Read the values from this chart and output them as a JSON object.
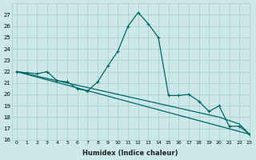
{
  "background_color": "#cce8e8",
  "grid_color": "#aacccc",
  "line_color": "#006666",
  "xlabel": "Humidex (Indice chaleur)",
  "ylim": [
    16,
    28
  ],
  "xlim": [
    -0.5,
    23
  ],
  "yticks": [
    16,
    17,
    18,
    19,
    20,
    21,
    22,
    23,
    24,
    25,
    26,
    27
  ],
  "xticks": [
    0,
    1,
    2,
    3,
    4,
    5,
    6,
    7,
    8,
    9,
    10,
    11,
    12,
    13,
    14,
    15,
    16,
    17,
    18,
    19,
    20,
    21,
    22,
    23
  ],
  "curve1_x": [
    0,
    1,
    2,
    3,
    4,
    5,
    6,
    7,
    8,
    9,
    10,
    11,
    12,
    13,
    14,
    15,
    16,
    17,
    18,
    19,
    20,
    21,
    22,
    23
  ],
  "curve1_y": [
    22.0,
    21.9,
    21.8,
    22.0,
    21.2,
    21.1,
    20.5,
    20.3,
    21.1,
    22.5,
    23.8,
    26.0,
    27.2,
    26.2,
    25.0,
    19.9,
    19.9,
    20.0,
    19.4,
    18.5,
    19.0,
    17.2,
    17.2,
    16.5
  ],
  "curve2_x": [
    0,
    23
  ],
  "curve2_y": [
    22.0,
    16.5
  ],
  "curve3_x": [
    0,
    1,
    2,
    3,
    4,
    5,
    6,
    7,
    8,
    9,
    10,
    11,
    12,
    13,
    14,
    15,
    16,
    17,
    18,
    19,
    20,
    21,
    22,
    23
  ],
  "curve3_y": [
    22.0,
    21.8,
    21.6,
    21.4,
    21.2,
    21.0,
    20.8,
    20.6,
    20.4,
    20.2,
    20.0,
    19.8,
    19.6,
    19.4,
    19.2,
    19.0,
    18.8,
    18.6,
    18.4,
    18.2,
    18.0,
    17.7,
    17.4,
    16.5
  ]
}
